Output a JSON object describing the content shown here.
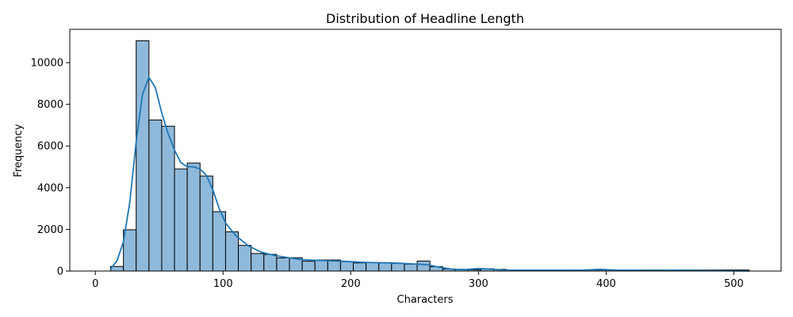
{
  "chart_data": {
    "type": "bar",
    "title": "Distribution of Headline Length",
    "xlabel": "Characters",
    "ylabel": "Frequency",
    "xlim": [
      -20,
      537
    ],
    "ylim": [
      0,
      11600
    ],
    "x_ticks": [
      0,
      100,
      200,
      300,
      400,
      500
    ],
    "y_ticks": [
      0,
      2000,
      4000,
      6000,
      8000,
      10000
    ],
    "grid": false,
    "bar_color": "#8fb9da",
    "bar_edge_color": "#000000",
    "kde_color": "#1f77b4",
    "bins": {
      "start": 12,
      "width": 10,
      "counts": [
        220,
        1980,
        11050,
        7250,
        6950,
        4900,
        5180,
        4560,
        2850,
        1880,
        1230,
        840,
        800,
        630,
        640,
        470,
        530,
        530,
        450,
        390,
        410,
        380,
        360,
        330,
        480,
        210,
        100,
        80,
        60,
        110,
        80,
        50,
        50,
        50,
        50,
        50,
        50,
        50,
        50,
        50,
        50,
        50,
        50,
        50,
        50,
        50,
        50,
        50,
        50,
        50
      ]
    },
    "kde": {
      "x": [
        12,
        17,
        22,
        27,
        32,
        37,
        42,
        47,
        52,
        57,
        62,
        67,
        72,
        77,
        82,
        87,
        92,
        97,
        102,
        110,
        120,
        130,
        140,
        150,
        160,
        170,
        180,
        190,
        200,
        210,
        220,
        230,
        240,
        250,
        260,
        270,
        280,
        290,
        300,
        310,
        320,
        340,
        360,
        380,
        395,
        410,
        430,
        460,
        490,
        512
      ],
      "y": [
        100,
        500,
        1400,
        3300,
        6200,
        8500,
        9300,
        8800,
        7600,
        6600,
        5800,
        5200,
        5000,
        5000,
        4900,
        4600,
        3900,
        3000,
        2300,
        1700,
        1200,
        900,
        750,
        650,
        560,
        520,
        500,
        480,
        450,
        420,
        400,
        390,
        370,
        340,
        300,
        180,
        80,
        70,
        120,
        90,
        40,
        30,
        30,
        40,
        80,
        40,
        25,
        35,
        15,
        0
      ]
    }
  }
}
